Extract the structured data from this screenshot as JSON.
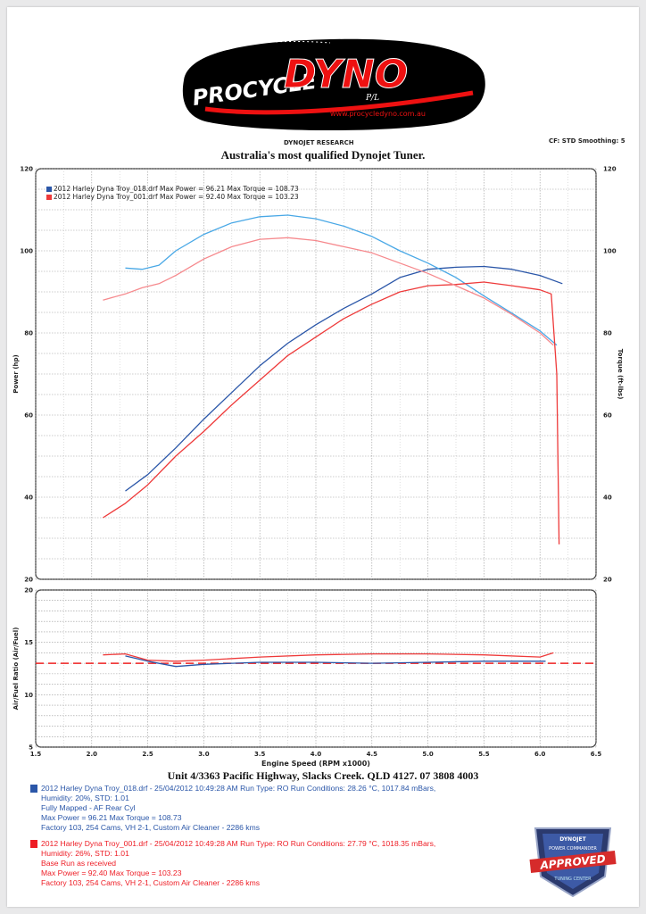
{
  "header": {
    "logo_primary": "PROCYCLE",
    "logo_secondary": "DYNO",
    "logo_suffix": "P/L",
    "logo_url": "www.procycledyno.com.au",
    "research_label": "DYNOJET RESEARCH",
    "settings": "CF: STD  Smoothing: 5",
    "tagline": "Australia's most qualified Dynojet Tuner."
  },
  "legend": [
    {
      "text": "2012 Harley Dyna  Troy_018.drf Max Power = 96.21   Max Torque = 108.73",
      "color": "#2a56a8"
    },
    {
      "text": "2012 Harley Dyna  Troy_001.drf Max Power = 92.40   Max Torque = 103.23",
      "color": "#ee3a3a"
    }
  ],
  "chart_data": [
    {
      "type": "line",
      "xlabel": "Engine Speed (RPM x1000)",
      "ylabel": "Power (hp)",
      "y2label": "Torque (ft-lbs)",
      "xlim": [
        1.5,
        6.5
      ],
      "ylim": [
        20,
        120
      ],
      "y2lim": [
        20,
        120
      ],
      "x_ticks": [
        "1.5",
        "2.0",
        "2.5",
        "3.0",
        "3.5",
        "4.0",
        "4.5",
        "5.0",
        "5.5",
        "6.0",
        "6.5"
      ],
      "y_ticks": [
        "20",
        "40",
        "60",
        "80",
        "100",
        "120"
      ],
      "grid": true,
      "legend_position": "top-left",
      "series": [
        {
          "name": "Troy_018 Power",
          "axis": "left",
          "color": "#2a56a8",
          "x": [
            2.3,
            2.5,
            2.75,
            3.0,
            3.25,
            3.5,
            3.75,
            4.0,
            4.25,
            4.5,
            4.75,
            5.0,
            5.25,
            5.5,
            5.75,
            6.0,
            6.2
          ],
          "y": [
            41.5,
            45.5,
            52,
            59,
            65.5,
            72,
            77.5,
            82,
            86,
            89.5,
            93.5,
            95.5,
            96.0,
            96.2,
            95.5,
            94,
            92
          ]
        },
        {
          "name": "Troy_018 Torque",
          "axis": "right",
          "color": "#49a8e6",
          "x": [
            2.3,
            2.45,
            2.6,
            2.75,
            3.0,
            3.25,
            3.5,
            3.75,
            4.0,
            4.25,
            4.5,
            4.75,
            5.0,
            5.25,
            5.5,
            5.75,
            6.0,
            6.15
          ],
          "y": [
            95.8,
            95.5,
            96.5,
            100,
            104,
            106.8,
            108.3,
            108.7,
            107.8,
            106,
            103.5,
            100,
            97,
            93.5,
            89,
            84.8,
            80.5,
            77
          ]
        },
        {
          "name": "Troy_001 Power",
          "axis": "left",
          "color": "#ee3a3a",
          "x": [
            2.1,
            2.3,
            2.5,
            2.75,
            3.0,
            3.25,
            3.5,
            3.75,
            4.0,
            4.25,
            4.5,
            4.75,
            5.0,
            5.25,
            5.5,
            5.75,
            6.0,
            6.1,
            6.15,
            6.17
          ],
          "y": [
            35,
            38.5,
            43,
            50,
            56,
            62.5,
            68.5,
            74.5,
            79,
            83.5,
            87,
            90,
            91.5,
            91.8,
            92.4,
            91.5,
            90.5,
            89.5,
            70,
            28.5
          ]
        },
        {
          "name": "Troy_001 Torque",
          "axis": "right",
          "color": "#f6898d",
          "x": [
            2.1,
            2.3,
            2.45,
            2.6,
            2.75,
            3.0,
            3.25,
            3.5,
            3.75,
            4.0,
            4.25,
            4.5,
            4.75,
            5.0,
            5.25,
            5.5,
            5.75,
            6.0,
            6.12
          ],
          "y": [
            88,
            89.5,
            91,
            92,
            94,
            98,
            101,
            102.8,
            103.2,
            102.5,
            101,
            99.5,
            97,
            94.5,
            91.5,
            88.5,
            84.5,
            80,
            77
          ]
        }
      ]
    },
    {
      "type": "line",
      "ylabel": "Air/Fuel Ratio (Air/Fuel)",
      "xlim": [
        1.5,
        6.5
      ],
      "ylim": [
        5,
        20
      ],
      "y_ticks": [
        "5",
        "10",
        "15",
        "20"
      ],
      "grid": true,
      "reference_line": 13.0,
      "series": [
        {
          "name": "Troy_018 AFR",
          "color": "#2a56a8",
          "x": [
            2.3,
            2.5,
            2.75,
            3.0,
            3.5,
            4.0,
            4.5,
            5.0,
            5.5,
            6.05
          ],
          "y": [
            13.7,
            13.2,
            12.7,
            12.9,
            13.1,
            13.1,
            13.0,
            13.1,
            13.2,
            13.2
          ]
        },
        {
          "name": "Troy_001 AFR",
          "color": "#ee3a3a",
          "x": [
            2.1,
            2.3,
            2.5,
            2.75,
            3.0,
            3.5,
            4.0,
            4.5,
            5.0,
            5.5,
            6.0,
            6.12
          ],
          "y": [
            13.8,
            13.9,
            13.3,
            13.2,
            13.3,
            13.6,
            13.8,
            13.9,
            13.9,
            13.8,
            13.6,
            14.0
          ]
        }
      ]
    }
  ],
  "footer": {
    "address": "Unit 4/3363 Pacific Highway, Slacks Creek. QLD 4127. 07 3808 4003",
    "run1": {
      "color": "#2a56a8",
      "lines": [
        "2012 Harley Dyna  Troy_018.drf - 25/04/2012 10:49:28 AM  Run Type: RO  Run Conditions: 28.26 °C, 1017.84 mBars,",
        "Humidity:  20%, STD: 1.01",
        "Fully Mapped -  AF Rear Cyl",
        "Max Power = 96.21  Max Torque = 108.73",
        "Factory 103, 254 Cams, VH 2-1, Custom Air Cleaner - 2286 kms"
      ]
    },
    "run2": {
      "color": "#ee1c24",
      "lines": [
        "2012 Harley Dyna  Troy_001.drf - 25/04/2012 10:49:28 AM  Run Type: RO  Run Conditions: 27.79 °C, 1018.35 mBars,",
        "Humidity:  26%, STD: 1.01",
        "Base Run as received",
        "Max Power = 92.40  Max Torque = 103.23",
        "Factory 103, 254 Cams, VH 2-1, Custom Air Cleaner - 2286 kms"
      ]
    },
    "badge": {
      "top": "DYNOJET",
      "middle": "POWER COMMANDER",
      "approved": "APPROVED",
      "bottom": "TUNING CENTER"
    }
  }
}
